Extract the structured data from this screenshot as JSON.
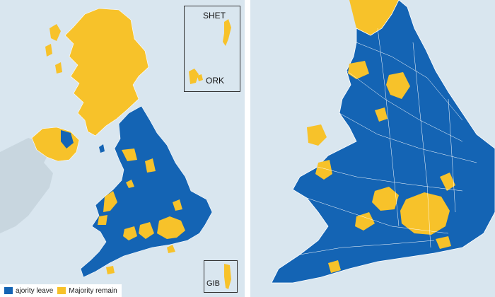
{
  "colors": {
    "sea": "#d9e6ef",
    "leave": "#1464b4",
    "remain": "#f7c22a",
    "ireland": "#c8d6df",
    "borders": "#ffffff",
    "inset_frame": "#333333"
  },
  "insets": {
    "shet": "SHET",
    "ork": "ORK",
    "gib": "GIB"
  },
  "legend": {
    "leave_label": "ajority leave",
    "remain_label": "Majority remain"
  },
  "regions": {
    "scotland": "remain",
    "northern_ireland": "remain",
    "england": "leave",
    "wales": "leave",
    "london": "remain"
  }
}
